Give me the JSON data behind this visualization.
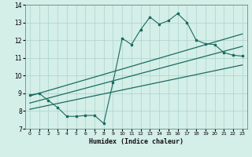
{
  "title": "",
  "xlabel": "Humidex (Indice chaleur)",
  "ylabel": "",
  "xlim": [
    -0.5,
    23.5
  ],
  "ylim": [
    7,
    14
  ],
  "yticks": [
    7,
    8,
    9,
    10,
    11,
    12,
    13,
    14
  ],
  "xticks": [
    0,
    1,
    2,
    3,
    4,
    5,
    6,
    7,
    8,
    9,
    10,
    11,
    12,
    13,
    14,
    15,
    16,
    17,
    18,
    19,
    20,
    21,
    22,
    23
  ],
  "bg_color": "#d4eee8",
  "line_color": "#1a6b60",
  "grid_color": "#aad4cc",
  "noisy_x": [
    0,
    1,
    2,
    3,
    4,
    5,
    6,
    7,
    8,
    9,
    10,
    11,
    12,
    13,
    14,
    15,
    16,
    17,
    18,
    19,
    20,
    21,
    22,
    23
  ],
  "noisy_y": [
    8.9,
    9.0,
    8.6,
    8.2,
    7.7,
    7.7,
    7.75,
    7.75,
    7.3,
    9.6,
    12.1,
    11.75,
    12.6,
    13.3,
    12.9,
    13.1,
    13.5,
    13.0,
    12.0,
    11.8,
    11.75,
    11.3,
    11.15,
    11.1
  ],
  "line1_x": [
    0,
    23
  ],
  "line1_y": [
    8.85,
    12.35
  ],
  "line2_x": [
    0,
    23
  ],
  "line2_y": [
    8.45,
    11.65
  ],
  "line3_x": [
    0,
    23
  ],
  "line3_y": [
    8.1,
    10.6
  ]
}
